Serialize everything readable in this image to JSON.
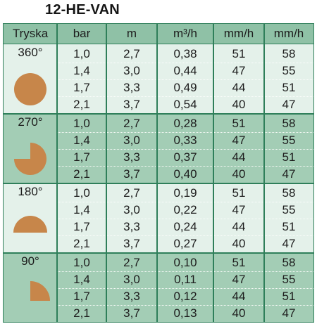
{
  "title": "12-HE-VAN",
  "headers": [
    "Tryska",
    "bar",
    "m",
    "m³/h",
    "mm/h",
    "mm/h"
  ],
  "colors": {
    "border": "#2f7f5a",
    "header_bg": "#8fc1a6",
    "light_bg": "#e4f1ea",
    "dark_bg": "#a3cdb5",
    "icon": "#c7864a"
  },
  "groups": [
    {
      "angle": "360°",
      "icon": "full-circle-icon",
      "rows": [
        [
          "1,0",
          "2,7",
          "0,38",
          "51",
          "58"
        ],
        [
          "1,4",
          "3,0",
          "0,44",
          "47",
          "55"
        ],
        [
          "1,7",
          "3,3",
          "0,49",
          "44",
          "51"
        ],
        [
          "2,1",
          "3,7",
          "0,54",
          "40",
          "47"
        ]
      ]
    },
    {
      "angle": "270°",
      "icon": "three-quarter-circle-icon",
      "rows": [
        [
          "1,0",
          "2,7",
          "0,28",
          "51",
          "58"
        ],
        [
          "1,4",
          "3,0",
          "0,33",
          "47",
          "55"
        ],
        [
          "1,7",
          "3,3",
          "0,37",
          "44",
          "51"
        ],
        [
          "2,1",
          "3,7",
          "0,40",
          "40",
          "47"
        ]
      ]
    },
    {
      "angle": "180°",
      "icon": "half-circle-icon",
      "rows": [
        [
          "1,0",
          "2,7",
          "0,19",
          "51",
          "58"
        ],
        [
          "1,4",
          "3,0",
          "0,22",
          "47",
          "55"
        ],
        [
          "1,7",
          "3,3",
          "0,24",
          "44",
          "51"
        ],
        [
          "2,1",
          "3,7",
          "0,27",
          "40",
          "47"
        ]
      ]
    },
    {
      "angle": "90°",
      "icon": "quarter-circle-icon",
      "rows": [
        [
          "1,0",
          "2,7",
          "0,10",
          "51",
          "58"
        ],
        [
          "1,4",
          "3,0",
          "0,11",
          "47",
          "55"
        ],
        [
          "1,7",
          "3,3",
          "0,12",
          "44",
          "51"
        ],
        [
          "2,1",
          "3,7",
          "0,13",
          "40",
          "47"
        ]
      ]
    }
  ]
}
